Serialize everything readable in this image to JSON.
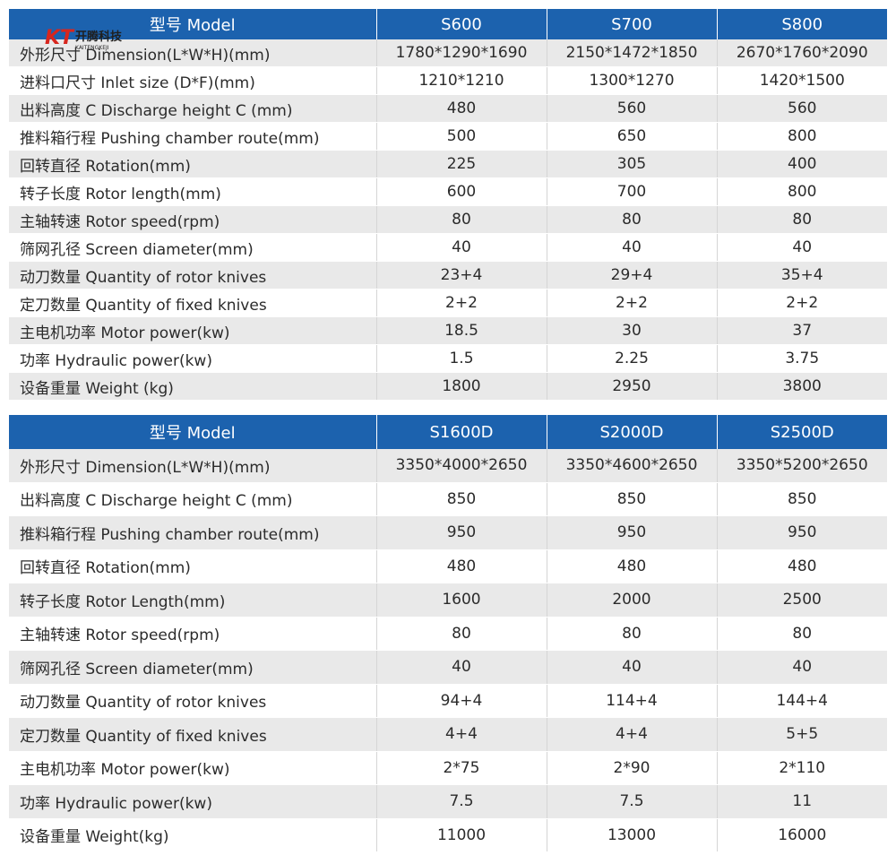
{
  "logo": {
    "mark": "KT",
    "text": "开腾科技",
    "subtext": "KAITENGKEJI"
  },
  "table1": {
    "header": [
      "型号 Model",
      "S600",
      "S700",
      "S800"
    ],
    "rows": [
      [
        "外形尺寸 Dimension(L*W*H)(mm)",
        "1780*1290*1690",
        "2150*1472*1850",
        "2670*1760*2090"
      ],
      [
        "进料口尺寸 Inlet size (D*F)(mm)",
        "1210*1210",
        "1300*1270",
        "1420*1500"
      ],
      [
        "出料高度 C Discharge height C (mm)",
        "480",
        "560",
        "560"
      ],
      [
        "推料箱行程 Pushing chamber route(mm)",
        "500",
        "650",
        "800"
      ],
      [
        "回转直径 Rotation(mm)",
        "225",
        "305",
        "400"
      ],
      [
        "转子长度 Rotor length(mm)",
        "600",
        "700",
        "800"
      ],
      [
        "主轴转速 Rotor speed(rpm)",
        "80",
        "80",
        "80"
      ],
      [
        "筛网孔径 Screen diameter(mm)",
        "40",
        "40",
        "40"
      ],
      [
        "动刀数量 Quantity of rotor knives",
        "23+4",
        "29+4",
        "35+4"
      ],
      [
        "定刀数量 Quantity of fixed knives",
        "2+2",
        "2+2",
        "2+2"
      ],
      [
        "主电机功率 Motor power(kw)",
        "18.5",
        "30",
        "37"
      ],
      [
        "功率 Hydraulic power(kw)",
        "1.5",
        "2.25",
        "3.75"
      ],
      [
        "设备重量 Weight (kg)",
        "1800",
        "2950",
        "3800"
      ]
    ]
  },
  "table2": {
    "header": [
      "型号 Model",
      "S1600D",
      "S2000D",
      "S2500D"
    ],
    "rows": [
      [
        "外形尺寸 Dimension(L*W*H)(mm)",
        "3350*4000*2650",
        "3350*4600*2650",
        "3350*5200*2650"
      ],
      [
        "出料高度 C Discharge height C (mm)",
        "850",
        "850",
        "850"
      ],
      [
        "推料箱行程 Pushing chamber route(mm)",
        "950",
        "950",
        "950"
      ],
      [
        "回转直径 Rotation(mm)",
        "480",
        "480",
        "480"
      ],
      [
        "转子长度 Rotor Length(mm)",
        "1600",
        "2000",
        "2500"
      ],
      [
        "主轴转速 Rotor speed(rpm)",
        "80",
        "80",
        "80"
      ],
      [
        "筛网孔径 Screen diameter(mm)",
        "40",
        "40",
        "40"
      ],
      [
        "动刀数量 Quantity of rotor knives",
        "94+4",
        "114+4",
        "144+4"
      ],
      [
        "定刀数量 Quantity of fixed knives",
        "4+4",
        "4+4",
        "5+5"
      ],
      [
        "主电机功率 Motor power(kw)",
        "2*75",
        "2*90",
        "2*110"
      ],
      [
        "功率 Hydraulic power(kw)",
        "7.5",
        "7.5",
        "11"
      ],
      [
        "设备重量 Weight(kg)",
        "11000",
        "13000",
        "16000"
      ]
    ]
  },
  "colors": {
    "header_bg": "#1c62ae",
    "header_text": "#ffffff",
    "row_alt": "#e9e9e9",
    "row": "#ffffff"
  }
}
